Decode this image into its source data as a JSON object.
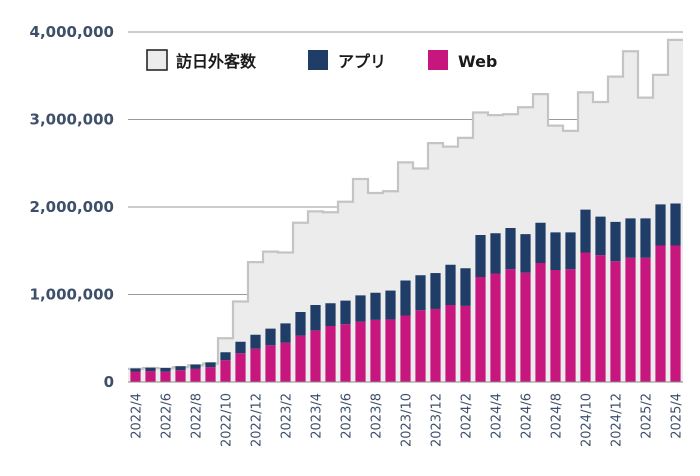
{
  "chart_data": {
    "type": "bar",
    "title": "",
    "xlabel": "",
    "ylabel": "",
    "ylim": [
      0,
      4000000
    ],
    "yticks": [
      "4,000,000",
      "3,000,000",
      "2,000,000",
      "1,000,000",
      "0"
    ],
    "ytick_values": [
      4000000,
      3000000,
      2000000,
      1000000,
      0
    ],
    "categories": [
      "2022/4",
      "2022/5",
      "2022/6",
      "2022/7",
      "2022/8",
      "2022/9",
      "2022/10",
      "2022/11",
      "2022/12",
      "2023/1",
      "2023/2",
      "2023/3",
      "2023/4",
      "2023/5",
      "2023/6",
      "2023/7",
      "2023/8",
      "2023/9",
      "2023/10",
      "2023/11",
      "2023/12",
      "2024/1",
      "2024/2",
      "2024/3",
      "2024/4",
      "2024/5",
      "2024/6",
      "2024/7",
      "2024/8",
      "2024/9",
      "2024/10",
      "2024/11",
      "2024/12",
      "2025/1",
      "2025/2",
      "2025/3",
      "2025/4"
    ],
    "xtick_labels": [
      "2022/4",
      "2022/6",
      "2022/8",
      "2022/10",
      "2022/12",
      "2023/2",
      "2023/4",
      "2023/6",
      "2023/8",
      "2023/10",
      "2023/12",
      "2024/2",
      "2024/4",
      "2024/6",
      "2024/8",
      "2024/10",
      "2024/12",
      "2025/2",
      "2025/4"
    ],
    "legend": [
      "訪日外客数",
      "アプリ",
      "Web"
    ],
    "legend_position": "top",
    "colors": {
      "visitors_fill": "#ececec",
      "visitors_line": "#c4c4c4",
      "app": "#1f3d66",
      "web": "#c7177f",
      "grid": "#9a9a9a",
      "axis_text": "#3d4f69"
    },
    "series": [
      {
        "name": "訪日外客数",
        "kind": "step-area",
        "values": [
          150000,
          160000,
          155000,
          170000,
          190000,
          210000,
          500000,
          920000,
          1370000,
          1490000,
          1480000,
          1820000,
          1950000,
          1940000,
          2060000,
          2320000,
          2160000,
          2180000,
          2510000,
          2440000,
          2730000,
          2690000,
          2790000,
          3080000,
          3050000,
          3060000,
          3140000,
          3290000,
          2930000,
          2870000,
          3310000,
          3200000,
          3490000,
          3780000,
          3250000,
          3510000,
          3910000
        ]
      },
      {
        "name": "Web",
        "kind": "stacked-bar",
        "values": [
          120000,
          125000,
          118000,
          135000,
          150000,
          170000,
          250000,
          330000,
          380000,
          420000,
          450000,
          530000,
          590000,
          640000,
          660000,
          690000,
          710000,
          715000,
          760000,
          820000,
          835000,
          880000,
          870000,
          1200000,
          1240000,
          1290000,
          1250000,
          1360000,
          1280000,
          1290000,
          1480000,
          1450000,
          1380000,
          1420000,
          1420000,
          1560000,
          1560000
        ]
      },
      {
        "name": "アプリ",
        "kind": "stacked-bar",
        "values": [
          35000,
          38000,
          42000,
          45000,
          50000,
          55000,
          90000,
          130000,
          160000,
          190000,
          220000,
          270000,
          290000,
          260000,
          270000,
          300000,
          310000,
          330000,
          400000,
          400000,
          410000,
          460000,
          430000,
          480000,
          460000,
          470000,
          440000,
          460000,
          430000,
          420000,
          490000,
          440000,
          450000,
          450000,
          450000,
          470000,
          480000
        ]
      }
    ]
  }
}
